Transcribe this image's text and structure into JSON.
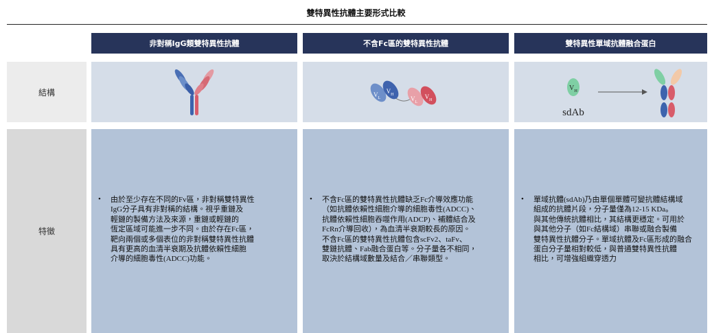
{
  "title": "雙特異性抗體主要形式比較",
  "columns": [
    "非對稱IgG類雙特異性抗體",
    "不含Fc區的雙特異性抗體",
    "雙特異性單域抗體融合蛋白"
  ],
  "rows": [
    {
      "label": "結構",
      "diagram_labels": {
        "cell2": [
          {
            "base": "V",
            "sub": "L"
          },
          {
            "base": "V",
            "sub": "H"
          },
          {
            "base": "V",
            "sub": "L"
          },
          {
            "base": "V",
            "sub": "H"
          }
        ],
        "cell3": [
          {
            "base": "V",
            "sub": "H"
          },
          {
            "base": "sdAb"
          }
        ]
      }
    },
    {
      "label": "特徵",
      "cells": [
        [
          "由於至少存在不同的Fv區，非對稱雙特異性",
          "IgG分子具有非對稱的結構。視乎重鏈及",
          "輕鏈的製備方法及來源，重鏈或輕鏈的",
          "恆定區域可能進一步不同。由於存在Fc區，",
          "靶向兩個或多個表位的非對稱雙特異性抗體",
          "具有更高的血清半衰期及抗體依賴性細胞",
          "介導的細胞毒性(ADCC)功能。"
        ],
        [
          "不含Fc區的雙特異性抗體缺乏Fc介導效應功能",
          "（如抗體依賴性細胞介導的細胞毒性(ADCC)、",
          "抗體依賴性細胞吞噬作用(ADCP)、補體結合及",
          "FcRn介導回收），為血清半衰期較長的原因。",
          "不含Fc區的雙特異性抗體包含scFv2、taFv、",
          "雙鏈抗體、Fab融合蛋白等。分子量各不相同，",
          "取決於結構域數量及結合／串聯類型。"
        ],
        [
          "單域抗體(sdAb)乃由單個單體可變抗體結構域",
          "組成的抗體片段，分子量僅為12-15 KDa。",
          "與其他傳統抗體相比，其結構更穩定。可用於",
          "與其他分子（如Fc結構域）串聯或融合製備",
          "雙特異性抗體分子。單域抗體及Fc區形成的融合",
          "蛋白分子量相對較低，與普通雙特異性抗體",
          "相比，可增強組織穿透力"
        ]
      ]
    }
  ]
}
